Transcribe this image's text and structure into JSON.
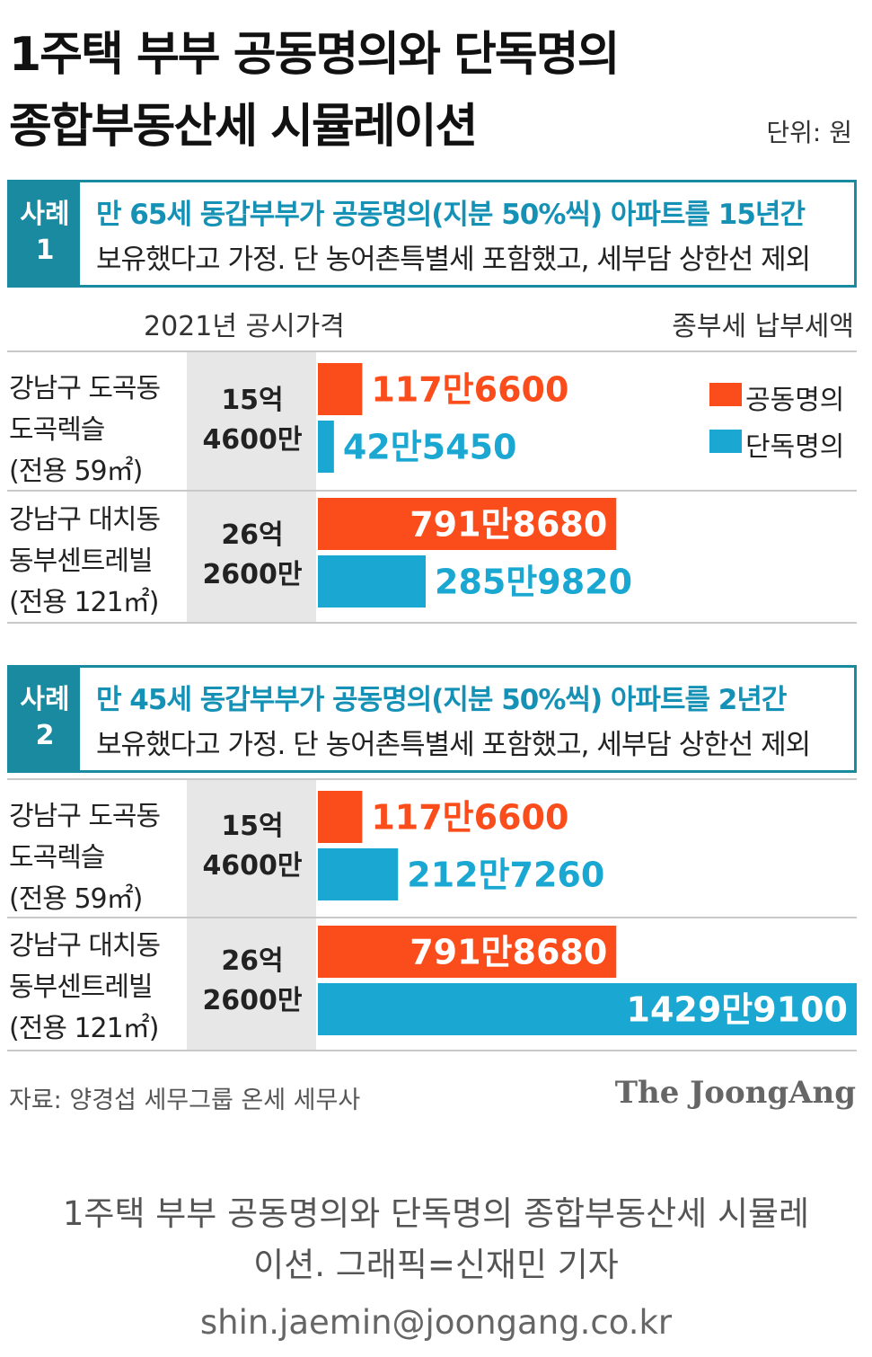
{
  "title": {
    "line1": "1주택 부부 공동명의와 단독명의",
    "line2": "종합부동산세 시뮬레이션",
    "unit": "단위: 원"
  },
  "colors": {
    "joint": "#fa4d1b",
    "single": "#1aa8d2",
    "case_tag": "#1a8aa0",
    "band": "#e7e7e7"
  },
  "headers": {
    "price": "2021년 공시가격",
    "tax": "종부세 납부세액"
  },
  "legend": {
    "joint": "공동명의",
    "single": "단독명의"
  },
  "cases": [
    {
      "tag_line1": "사례",
      "tag_line2": "1",
      "desc_line1": "만 65세 동갑부부가 공동명의(지분 50%씩) 아파트를 15년간",
      "desc_line2": "보유했다고 가정. 단 농어촌특별세 포함했고, 세부담 상한선 제외"
    },
    {
      "tag_line1": "사례",
      "tag_line2": "2",
      "desc_line1": "만 45세 동갑부부가 공동명의(지분 50%씩) 아파트를 2년간",
      "desc_line2": "보유했다고 가정. 단 농어촌특별세 포함했고, 세부담 상한선 제외"
    }
  ],
  "properties": [
    {
      "line1": "강남구 도곡동",
      "line2": "도곡렉슬",
      "line3": "(전용 59㎡)",
      "price_line1": "15억",
      "price_line2": "4600만"
    },
    {
      "line1": "강남구 대치동",
      "line2": "동부센트레빌",
      "line3": "(전용 121㎡)",
      "price_line1": "26억",
      "price_line2": "2600만"
    }
  ],
  "chart_data": {
    "type": "bar",
    "orientation": "horizontal",
    "unit": "원",
    "categories": [
      "사례1 도곡렉슬",
      "사례1 동부센트레빌",
      "사례2 도곡렉슬",
      "사례2 동부센트레빌"
    ],
    "series": [
      {
        "name": "공동명의",
        "values": [
          1176600,
          7918680,
          1176600,
          7918680
        ],
        "labels": [
          "117만6600",
          "791만8680",
          "117만6600",
          "791만8680"
        ]
      },
      {
        "name": "단독명의",
        "values": [
          425450,
          2859820,
          2127260,
          14299100
        ],
        "labels": [
          "42만5450",
          "285만9820",
          "212만7260",
          "1429만9100"
        ]
      }
    ],
    "legend_position": "right",
    "grid": false
  },
  "footer": {
    "source": "자료: 양경섭 세무그룹 온세 세무사",
    "brand": "The JoongAng"
  },
  "caption": {
    "line1": "1주택 부부 공동명의와 단독명의 종합부동산세 시뮬레",
    "line2": "이션. 그래픽=신재민 기자",
    "email": "shin.jaemin@joongang.co.kr"
  }
}
